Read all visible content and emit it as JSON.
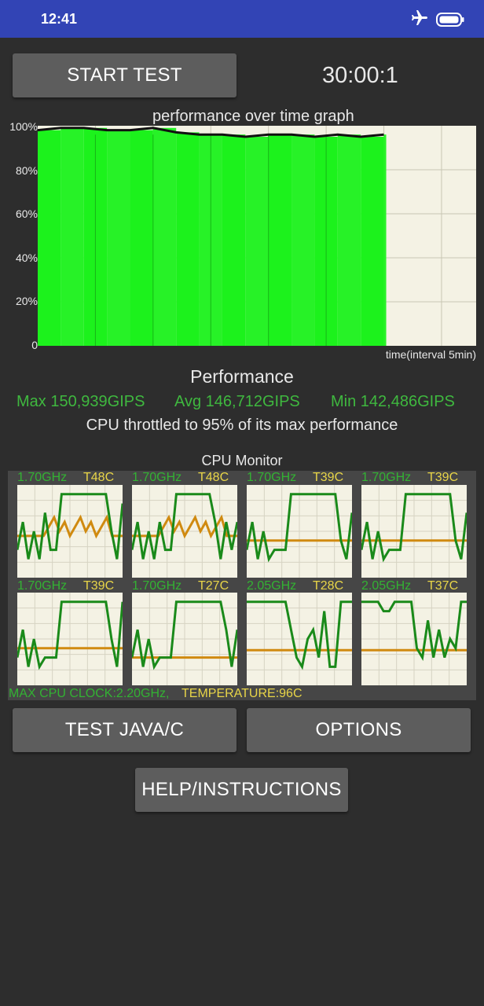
{
  "status_bar": {
    "time": "12:41",
    "icons": [
      "airplane-mode-icon",
      "battery-icon"
    ]
  },
  "controls": {
    "start_test": "START TEST",
    "timer": "30:00:1",
    "test_java": "TEST JAVA/C",
    "options": "OPTIONS",
    "help": "HELP/INSTRUCTIONS"
  },
  "performance_graph": {
    "title": "performance over time graph",
    "y_ticks": [
      "100%",
      "80%",
      "60%",
      "40%",
      "20%",
      "0"
    ],
    "x_caption": "time(interval 5min)"
  },
  "performance": {
    "title": "Performance",
    "max": "Max 150,939GIPS",
    "avg": "Avg 146,712GIPS",
    "min": "Min 142,486GIPS",
    "throttle": "CPU throttled to 95% of its max performance"
  },
  "cpu_monitor": {
    "title": "CPU Monitor",
    "cores": [
      {
        "freq": "1.70GHz",
        "temp": "T48C"
      },
      {
        "freq": "1.70GHz",
        "temp": "T48C"
      },
      {
        "freq": "1.70GHz",
        "temp": "T39C"
      },
      {
        "freq": "1.70GHz",
        "temp": "T39C"
      },
      {
        "freq": "1.70GHz",
        "temp": "T39C"
      },
      {
        "freq": "1.70GHz",
        "temp": "T27C"
      },
      {
        "freq": "2.05GHz",
        "temp": "T28C"
      },
      {
        "freq": "2.05GHz",
        "temp": "T37C"
      }
    ],
    "max_clock": "MAX CPU CLOCK:2.20GHz,",
    "temperature": "TEMPERATURE:96C"
  },
  "colors": {
    "background": "#2d2d2d",
    "status_bar": "#3244b5",
    "button": "#5d5d5d",
    "performance_fill": "#1cf21c",
    "stat_text": "#3fb83f",
    "freq_line": "#1a8a1a",
    "temp_line": "#d08a10",
    "temp_text": "#e8d548"
  },
  "chart_data": {
    "type": "area",
    "title": "performance over time graph",
    "xlabel": "time(interval 5min)",
    "ylabel": "",
    "ylim": [
      0,
      100
    ],
    "x_unit": "minutes",
    "series": [
      {
        "x": [
          0,
          2,
          4,
          6,
          8,
          10,
          12,
          14,
          16,
          18,
          20,
          22,
          24,
          26,
          28,
          30
        ],
        "values": [
          98,
          99,
          99,
          98,
          98,
          99,
          97,
          96,
          96,
          95,
          96,
          96,
          95,
          96,
          95,
          96
        ]
      }
    ]
  }
}
